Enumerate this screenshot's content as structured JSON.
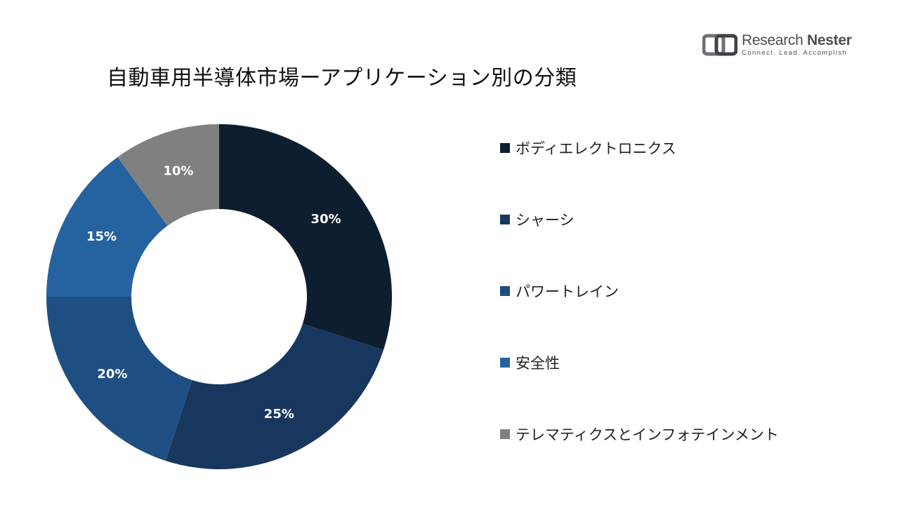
{
  "logo": {
    "name_part1": "Research",
    "name_part2": "Nester",
    "tagline": "Connect. Lead. Accomplish"
  },
  "chart_data": {
    "type": "pie",
    "title": "自動車用半導体市場ーアプリケーション別の分類",
    "donut": true,
    "categories": [
      "ボディエレクトロニクス",
      "シャーシ",
      "パワートレイン",
      "安全性",
      "テレマティクスとインフォテインメント"
    ],
    "values": [
      30,
      25,
      20,
      15,
      10
    ],
    "data_labels": [
      "30%",
      "25%",
      "20%",
      "15%",
      "10%"
    ],
    "colors": [
      "#0d1e30",
      "#17375e",
      "#1f4f82",
      "#2563a0",
      "#808080"
    ],
    "legend_position": "right"
  }
}
